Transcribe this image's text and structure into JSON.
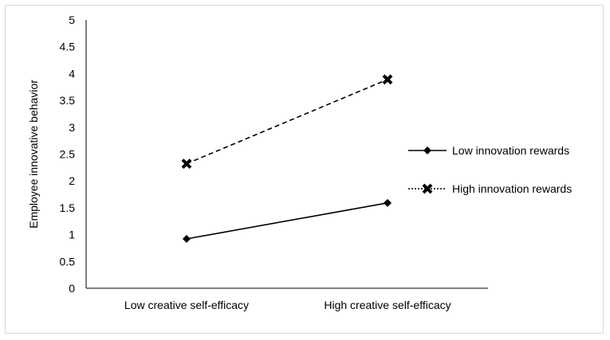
{
  "chart_data": {
    "type": "line",
    "categories": [
      "Low creative self-efficacy",
      "High creative self-efficacy"
    ],
    "series": [
      {
        "name": "Low innovation rewards",
        "values": [
          0.92,
          1.59
        ],
        "line_style": "solid",
        "marker": "diamond",
        "color": "#000000"
      },
      {
        "name": "High innovation rewards",
        "values": [
          2.32,
          3.89
        ],
        "line_style": "dashed",
        "marker": "cross",
        "color": "#000000"
      }
    ],
    "ylabel": "Employee innovative behavior",
    "xlabel": "",
    "ylim": [
      0,
      5
    ],
    "yticks": [
      "0",
      "0.5",
      "1",
      "1.5",
      "2",
      "2.5",
      "3",
      "3.5",
      "4",
      "4.5",
      "5"
    ],
    "grid": false,
    "legend_position": "right"
  }
}
